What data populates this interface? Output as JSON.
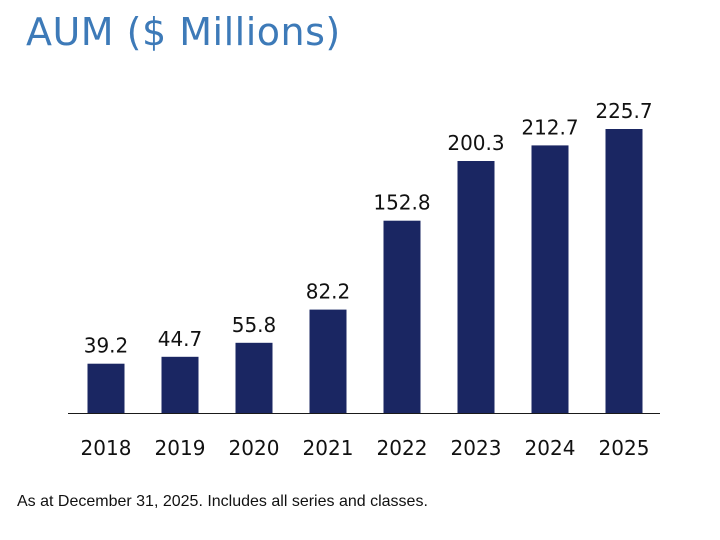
{
  "colors": {
    "title": "#3d7ab8",
    "bar": "#1a2662",
    "axis": "#1a1a1a",
    "text": "#111111"
  },
  "title": "AUM ($ Millions)",
  "footnote": "As at December 31, 2025. Includes all series and classes.",
  "chart_data": {
    "type": "bar",
    "title": "AUM ($ Millions)",
    "xlabel": "",
    "ylabel": "",
    "categories": [
      "2018",
      "2019",
      "2020",
      "2021",
      "2022",
      "2023",
      "2024",
      "2025"
    ],
    "values": [
      39.2,
      44.7,
      55.8,
      82.2,
      152.8,
      200.3,
      212.7,
      225.7
    ],
    "value_labels": [
      "39.2",
      "44.7",
      "55.8",
      "82.2",
      "152.8",
      "200.3",
      "212.7",
      "225.7"
    ],
    "ylim": [
      0,
      225.7
    ],
    "grid": false,
    "legend": "none"
  }
}
